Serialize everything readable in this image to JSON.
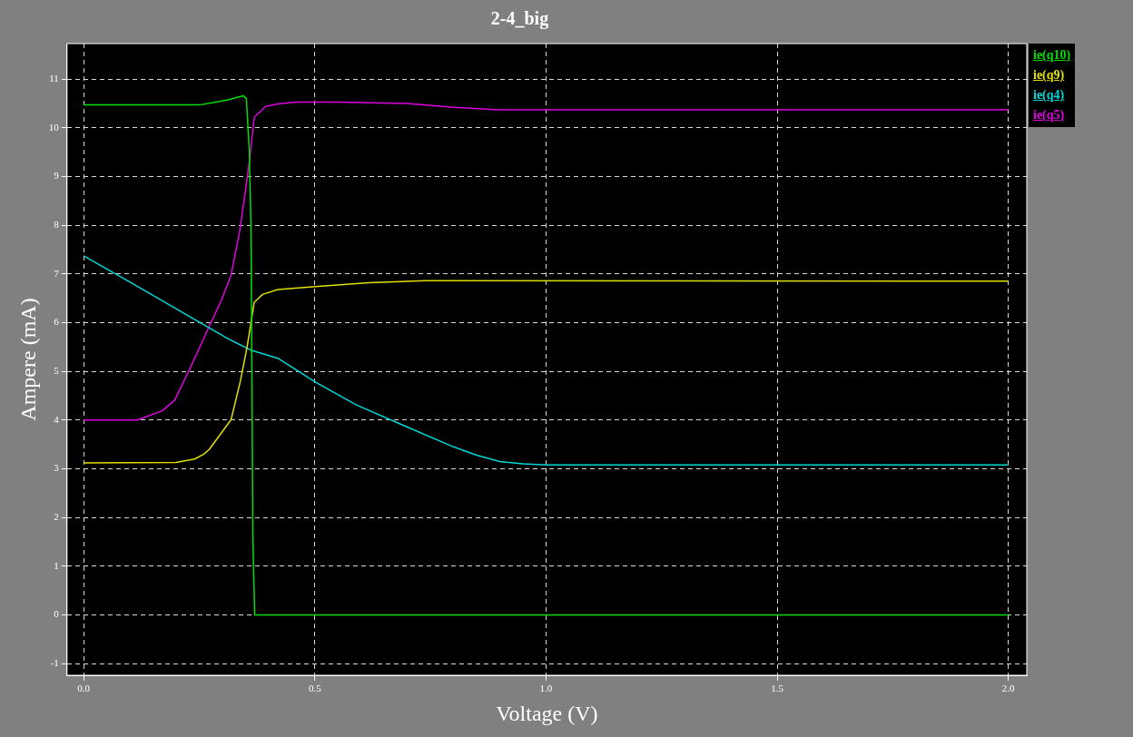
{
  "chart_data": {
    "type": "line",
    "title": "2-4_big",
    "xlabel": "Voltage (V)",
    "ylabel": "Ampere (mA)",
    "xlim": [
      -0.036,
      2.04
    ],
    "ylim": [
      -1.24,
      11.73
    ],
    "xticks": [
      {
        "value": 0,
        "label": "0.0"
      },
      {
        "value": 0.5,
        "label": "0.5"
      },
      {
        "value": 1,
        "label": "1.0"
      },
      {
        "value": 1.5,
        "label": "1.5"
      },
      {
        "value": 2,
        "label": "2.0"
      }
    ],
    "yticks": [
      -1,
      0,
      1,
      2,
      3,
      4,
      5,
      6,
      7,
      8,
      9,
      10,
      11
    ],
    "grid": true,
    "legend": "top right",
    "marker": "none",
    "line_style": "solid",
    "series": [
      {
        "name": "ie(q10)",
        "color": "#00e000",
        "x": [
          0,
          0.25,
          0.28,
          0.31,
          0.33,
          0.345,
          0.352,
          0.358,
          0.362,
          0.364,
          0.366,
          0.37,
          2.0
        ],
        "values": [
          10.47,
          10.47,
          10.52,
          10.57,
          10.62,
          10.66,
          10.6,
          9.6,
          8,
          5,
          1.6,
          0,
          0
        ]
      },
      {
        "name": "ie(q9)",
        "color": "#e0e000",
        "x": [
          0,
          0.2,
          0.24,
          0.26,
          0.272,
          0.319,
          0.339,
          0.353,
          0.369,
          0.387,
          0.42,
          0.501,
          0.617,
          0.738,
          2.0
        ],
        "values": [
          3.12,
          3.13,
          3.2,
          3.3,
          3.4,
          4.01,
          4.8,
          5.47,
          6.42,
          6.58,
          6.68,
          6.74,
          6.82,
          6.86,
          6.85
        ]
      },
      {
        "name": "ie(q4)",
        "color": "#00d8d8",
        "x": [
          0,
          0.11,
          0.205,
          0.312,
          0.363,
          0.42,
          0.501,
          0.59,
          0.692,
          0.8,
          0.85,
          0.9,
          0.95,
          1.0,
          2.0
        ],
        "values": [
          7.37,
          6.78,
          6.26,
          5.67,
          5.43,
          5.27,
          4.78,
          4.31,
          3.89,
          3.45,
          3.28,
          3.15,
          3.1,
          3.08,
          3.08
        ]
      },
      {
        "name": "ie(q5)",
        "color": "#e000e0",
        "x": [
          0,
          0.116,
          0.17,
          0.197,
          0.231,
          0.272,
          0.298,
          0.319,
          0.337,
          0.349,
          0.359,
          0.369,
          0.394,
          0.42,
          0.46,
          0.55,
          0.7,
          0.8,
          0.9,
          2.0
        ],
        "values": [
          4.0,
          4.0,
          4.19,
          4.41,
          5.08,
          5.93,
          6.46,
          6.98,
          7.85,
          8.64,
          9.35,
          10.22,
          10.44,
          10.49,
          10.53,
          10.53,
          10.5,
          10.42,
          10.37,
          10.37
        ]
      }
    ]
  }
}
